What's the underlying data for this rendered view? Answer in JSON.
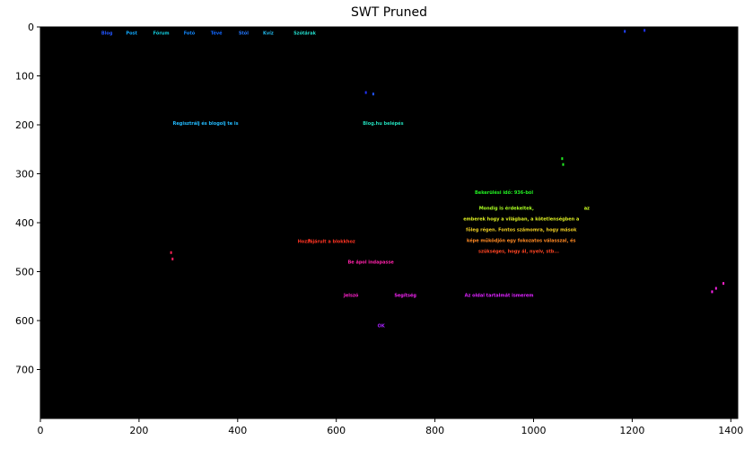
{
  "chart_data": {
    "type": "heatmap",
    "title": "SWT Pruned",
    "xlabel": "",
    "ylabel": "",
    "xlim": [
      0,
      1414
    ],
    "ylim": [
      800,
      0
    ],
    "x_ticks": [
      0,
      200,
      400,
      600,
      800,
      1000,
      1200,
      1400
    ],
    "y_ticks": [
      0,
      100,
      200,
      300,
      400,
      500,
      600,
      700
    ],
    "background": "#000000",
    "detected_text": [
      {
        "text": "Blog",
        "x": 135,
        "y": 12,
        "color": "#2255ff"
      },
      {
        "text": "Post",
        "x": 185,
        "y": 12,
        "color": "#11aaff"
      },
      {
        "text": "Fórum",
        "x": 245,
        "y": 12,
        "color": "#11ccdd"
      },
      {
        "text": "Fotó",
        "x": 302,
        "y": 12,
        "color": "#1188ff"
      },
      {
        "text": "Tévé",
        "x": 357,
        "y": 12,
        "color": "#1166ff"
      },
      {
        "text": "Stól",
        "x": 412,
        "y": 12,
        "color": "#2277ff"
      },
      {
        "text": "Kvíz",
        "x": 462,
        "y": 12,
        "color": "#22bbee"
      },
      {
        "text": "Szótárak",
        "x": 536,
        "y": 12,
        "color": "#22ddcc"
      },
      {
        "text": "Regisztrálj és blogolj te is",
        "x": 335,
        "y": 196,
        "color": "#22bbff"
      },
      {
        "text": "Blog.hu belépés",
        "x": 695,
        "y": 196,
        "color": "#22ddbb"
      },
      {
        "text": "Bekerülési idő: 936-ból",
        "x": 940,
        "y": 338,
        "color": "#22ee22"
      },
      {
        "text": "Mondig is érdekeltek,",
        "x": 945,
        "y": 370,
        "color": "#aaff22"
      },
      {
        "text": "az",
        "x": 1108,
        "y": 370,
        "color": "#ccff22"
      },
      {
        "text": "emberek hogy a világban, a kötetlenségben a",
        "x": 975,
        "y": 392,
        "color": "#ddee22"
      },
      {
        "text": "főleg régen. Fontos számomra, hogy mások",
        "x": 975,
        "y": 414,
        "color": "#eecc22"
      },
      {
        "text": "képe működjön egy fokozatos válasszal, és",
        "x": 975,
        "y": 436,
        "color": "#ff8822"
      },
      {
        "text": "szükséges, hogy ál, nyelv, stb...",
        "x": 970,
        "y": 458,
        "color": "#ff4422"
      },
      {
        "text": "Hozzájárult a blokkhoz",
        "x": 580,
        "y": 438,
        "color": "#ff3322"
      },
      {
        "text": "Be ápol indapasse",
        "x": 670,
        "y": 480,
        "color": "#ff22aa"
      },
      {
        "text": "Jelszó",
        "x": 630,
        "y": 548,
        "color": "#ff22cc"
      },
      {
        "text": "Segítség",
        "x": 740,
        "y": 548,
        "color": "#ee22ee"
      },
      {
        "text": "Az oldal tartalmát ismerem",
        "x": 930,
        "y": 548,
        "color": "#dd22ff"
      },
      {
        "text": "OK",
        "x": 691,
        "y": 610,
        "color": "#aa22ff"
      }
    ]
  }
}
